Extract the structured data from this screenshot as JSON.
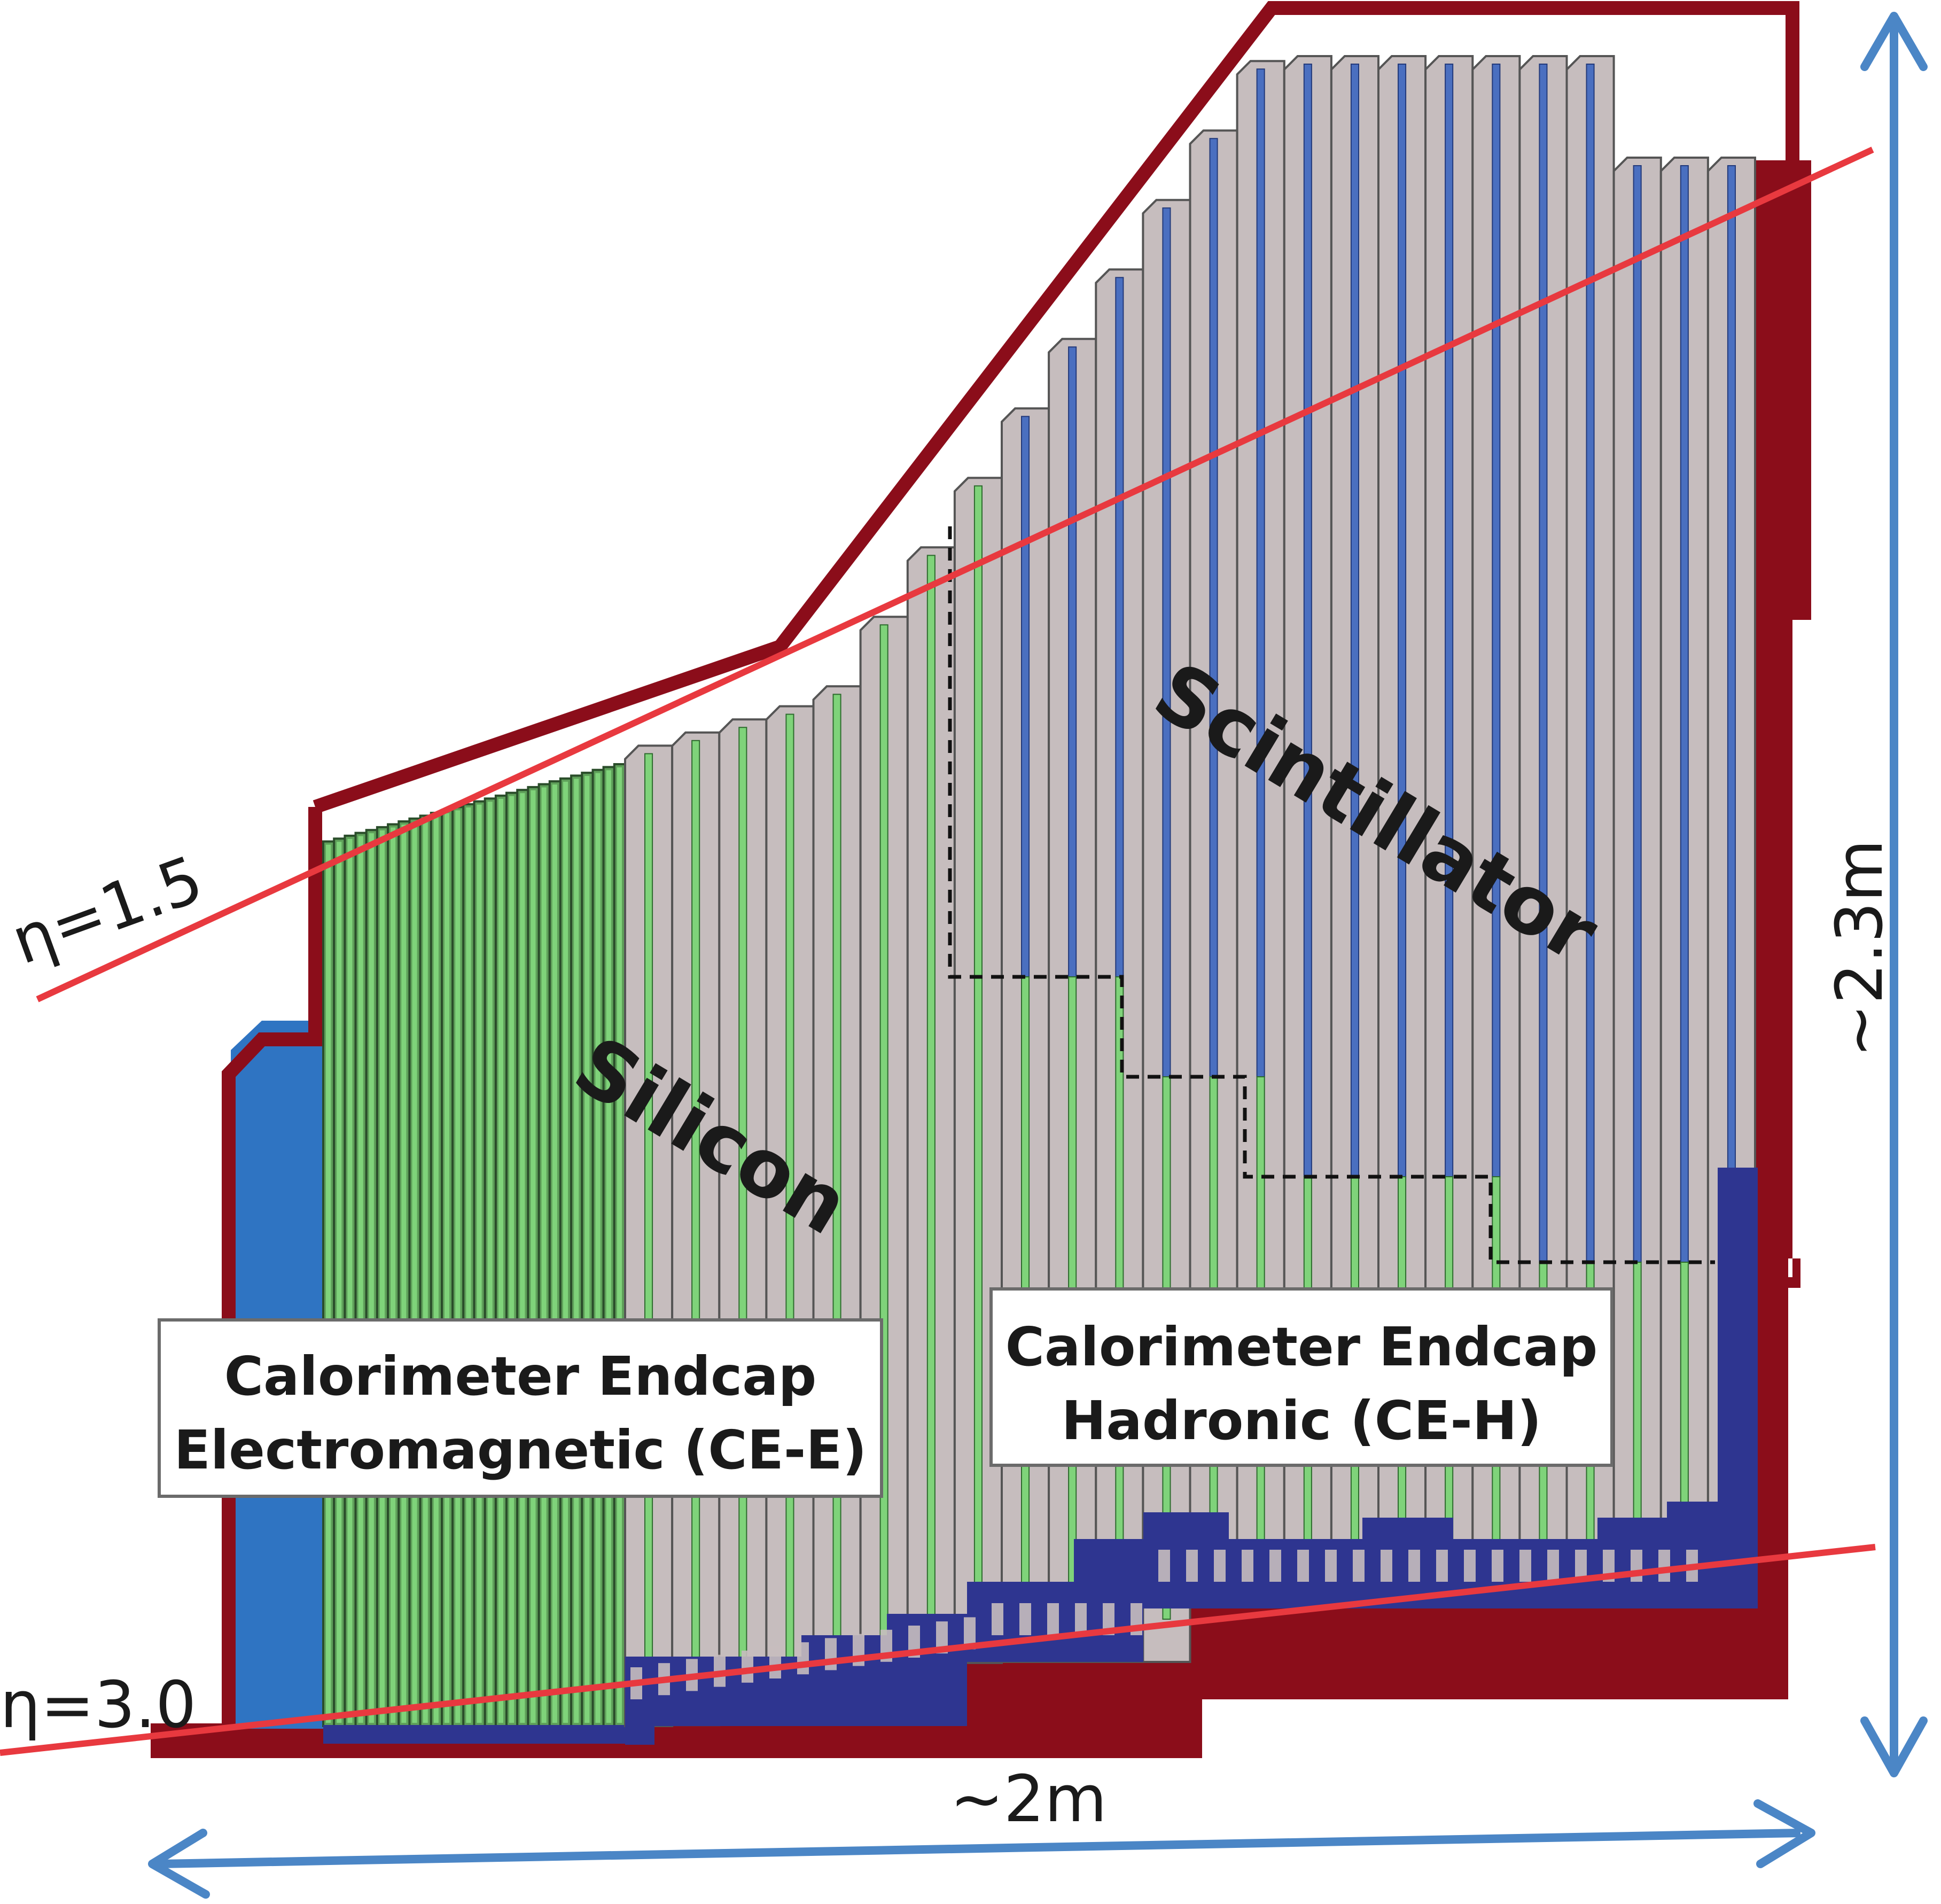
{
  "labels": {
    "silicon": "Silicon",
    "scintillator": "Scintillator",
    "ce_e": [
      "Calorimeter Endcap",
      "Electromagnetic (CE-E)"
    ],
    "ce_h": [
      "Calorimeter Endcap",
      "Hadronic (CE-H)"
    ],
    "eta_15": "η=1.5",
    "eta_30": "η=3.0",
    "width": "~2m",
    "height": "~2.3m"
  },
  "colors": {
    "frame": "#8b0d1a",
    "absorber": "#c6bdbe",
    "ce_e_fill": "#5fa05a",
    "silicon_layer": "#7fd37a",
    "scintillator_layer": "#4a6fc0",
    "electronics": "#2e3590",
    "moderator": "#2f74c2",
    "eta_line": "#e8393f",
    "dimension_arrow": "#4b86c6"
  },
  "layers": {
    "ce_e_count": 28,
    "ce_h_count": 24,
    "ce_h_full_silicon": 8,
    "ce_h_mixed": 16
  }
}
